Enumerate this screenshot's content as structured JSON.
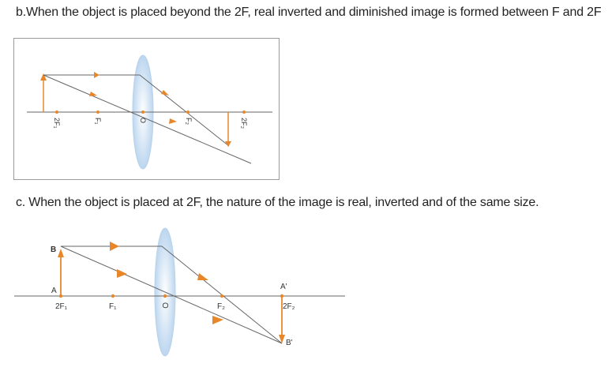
{
  "captions": {
    "b": "b.When the object is placed beyond the 2F, real inverted and diminished image is formed between F and 2F",
    "c": "c. When the object is placed at 2F, the nature of the image   is real, inverted and of the same size."
  },
  "diagram_b": {
    "labels": [
      "2F₁",
      "F₁",
      "O",
      "F₂",
      "2F₂"
    ]
  },
  "diagram_c": {
    "labels": [
      "2F₁",
      "F₁",
      "O",
      "F₂",
      "2F₂"
    ],
    "object_top": "B",
    "object_base": "A",
    "image_top": "A'",
    "image_tip": "B'"
  },
  "colors": {
    "ray": "#666666",
    "arrow": "#e8872a",
    "lens": "#c9def3",
    "axis": "#666666"
  }
}
